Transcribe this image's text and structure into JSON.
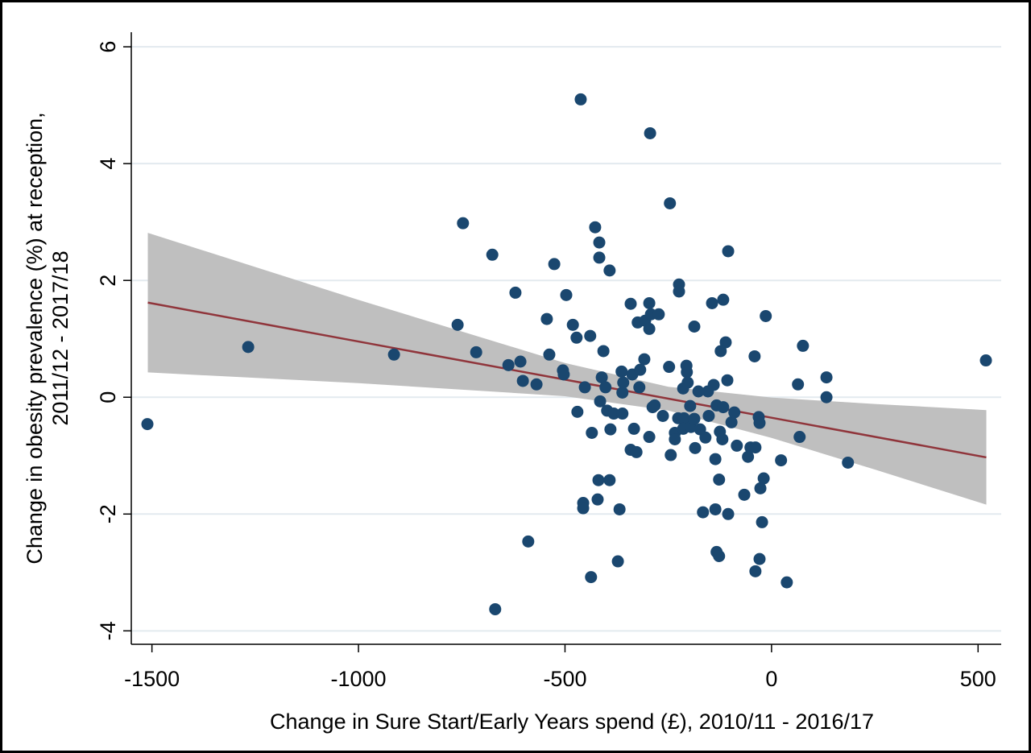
{
  "chart_data": {
    "type": "scatter",
    "xlabel": "Change in Sure Start/Early Years spend (£), 2010/11 - 2016/17",
    "ylabel": [
      "Change in obesity prevalence (%) at reception,",
      "2011/12 - 2017/18"
    ],
    "xlim": [
      -1550,
      556
    ],
    "ylim": [
      -4.23,
      6.25
    ],
    "xticks": [
      -1500,
      -1000,
      -500,
      0,
      500
    ],
    "yticks": [
      -4,
      -2,
      0,
      2,
      4,
      6
    ],
    "grid": true,
    "color": "#1a476f",
    "x": [
      -1511,
      -1267,
      -914,
      -747,
      -760,
      -715,
      -676,
      -620,
      -637,
      -608,
      -602,
      -569,
      -589,
      -669,
      -544,
      -538,
      -526,
      -497,
      -505,
      -503,
      -481,
      -472,
      -462,
      -470,
      -452,
      -456,
      -456,
      -439,
      -435,
      -427,
      -417,
      -417,
      -419,
      -421,
      -437,
      -411,
      -415,
      -407,
      -392,
      -402,
      -398,
      -390,
      -392,
      -382,
      -368,
      -372,
      -361,
      -363,
      -359,
      -361,
      -341,
      -337,
      -341,
      -333,
      -327,
      -324,
      -318,
      -320,
      -308,
      -306,
      -296,
      -296,
      -294,
      -292,
      -296,
      -288,
      -283,
      -273,
      -263,
      -248,
      -246,
      -244,
      -234,
      -234,
      -226,
      -224,
      -224,
      -214,
      -206,
      -205,
      -212,
      -214,
      -203,
      -197,
      -195,
      -187,
      -187,
      -185,
      -177,
      -173,
      -166,
      -160,
      -154,
      -152,
      -144,
      -140,
      -136,
      -136,
      -133,
      -133,
      -127,
      -127,
      -123,
      -125,
      -119,
      -117,
      -117,
      -111,
      -107,
      -105,
      -105,
      -97,
      -90,
      -84,
      -66,
      -57,
      -51,
      -39,
      -41,
      -39,
      -31,
      -29,
      -27,
      -23,
      -29,
      -19,
      -14,
      23,
      37,
      64,
      68,
      76,
      133,
      133,
      185,
      519
    ],
    "values": [
      -0.46,
      0.86,
      0.73,
      2.98,
      1.24,
      0.77,
      2.44,
      1.79,
      0.55,
      0.61,
      0.28,
      0.22,
      -2.47,
      -3.63,
      1.34,
      0.73,
      2.28,
      1.75,
      0.46,
      0.39,
      1.24,
      1.02,
      5.1,
      -0.25,
      0.17,
      -1.81,
      -1.9,
      1.05,
      -0.61,
      2.91,
      2.65,
      2.39,
      -1.42,
      -1.75,
      -3.08,
      0.34,
      -0.07,
      0.79,
      2.17,
      0.17,
      -0.23,
      -0.55,
      -1.42,
      -0.28,
      -1.92,
      -2.81,
      -0.28,
      0.44,
      0.25,
      0.08,
      1.6,
      0.39,
      -0.9,
      -0.54,
      -0.94,
      1.28,
      0.47,
      0.17,
      0.65,
      1.31,
      1.61,
      1.17,
      4.52,
      1.42,
      -0.68,
      -0.17,
      -0.14,
      1.42,
      -0.32,
      0.52,
      3.32,
      -0.99,
      -0.61,
      -0.72,
      -0.36,
      1.93,
      1.81,
      0.15,
      0.54,
      0.43,
      -0.36,
      -0.54,
      0.25,
      -0.15,
      -0.51,
      1.21,
      -0.37,
      -0.87,
      0.1,
      -0.55,
      -1.97,
      -0.69,
      0.1,
      -0.32,
      1.61,
      0.21,
      -1.06,
      -1.92,
      -0.14,
      -2.65,
      -2.72,
      -1.41,
      0.79,
      -0.59,
      -0.72,
      1.67,
      -0.17,
      0.94,
      0.29,
      2.5,
      -2.0,
      -0.43,
      -0.26,
      -0.83,
      -1.67,
      -1.02,
      -0.86,
      -0.86,
      0.7,
      -2.98,
      -0.34,
      -0.44,
      -1.56,
      -2.14,
      -2.77,
      -1.39,
      1.39,
      -1.08,
      -3.17,
      0.22,
      -0.68,
      0.88,
      0.34,
      0.0,
      -1.12,
      0.63
    ],
    "fit": {
      "color": "#90353b",
      "band_color": "#bfbfbf",
      "x": [
        -1510,
        -1000,
        -500,
        -250,
        0,
        250,
        520
      ],
      "y": [
        1.62,
        0.954,
        0.302,
        -0.024,
        -0.351,
        -0.677,
        -1.03
      ],
      "lower": [
        0.425,
        0.241,
        0.018,
        -0.228,
        -0.697,
        -1.238,
        -1.84
      ],
      "upper": [
        2.815,
        1.667,
        0.586,
        0.18,
        -0.005,
        -0.116,
        -0.22
      ]
    }
  }
}
